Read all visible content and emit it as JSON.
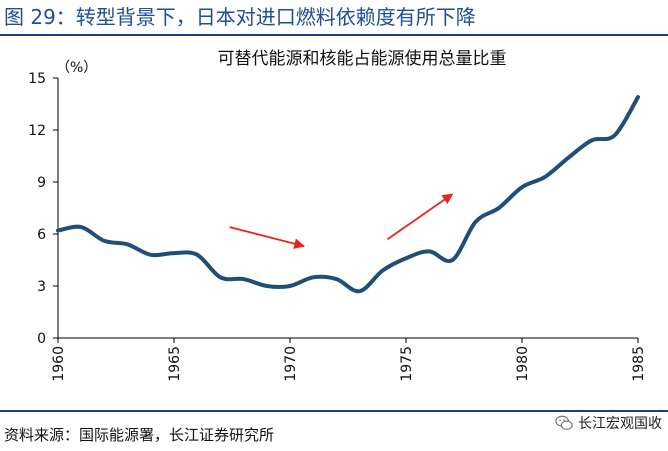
{
  "figure": {
    "title": "图 29：转型背景下，日本对进口燃料依赖度有所下降",
    "source": "资料来源：国际能源署，长江证券研究所",
    "brand": "长江宏观国收",
    "brand_icon": "wechat-icon"
  },
  "colors": {
    "title": "#1f4e9a",
    "rule": "#1f3f7a",
    "line": "#1f4e79",
    "arrow": "#e8261e",
    "axis": "#000000"
  },
  "chart_data": {
    "type": "line",
    "title": "可替代能源和核能占能源使用总量比重",
    "ylabel": "（%）",
    "xlabel": "",
    "ylim": [
      0,
      15
    ],
    "xlim": [
      1960,
      1985
    ],
    "yticks": [
      0,
      3,
      6,
      9,
      12,
      15
    ],
    "xticks": [
      1960,
      1965,
      1970,
      1975,
      1980,
      1985
    ],
    "grid": false,
    "series": [
      {
        "x": [
          1960,
          1961,
          1962,
          1963,
          1964,
          1965,
          1966,
          1967,
          1968,
          1969,
          1970,
          1971,
          1972,
          1973,
          1974,
          1975,
          1976,
          1977,
          1978,
          1979,
          1980,
          1981,
          1982,
          1983,
          1984,
          1985
        ],
        "values": [
          6.2,
          6.4,
          5.6,
          5.4,
          4.8,
          4.9,
          4.8,
          3.5,
          3.4,
          3.0,
          3.0,
          3.5,
          3.4,
          2.7,
          3.9,
          4.6,
          5.0,
          4.5,
          6.7,
          7.5,
          8.7,
          9.3,
          10.4,
          11.4,
          11.7,
          13.9
        ]
      }
    ],
    "annotations": [
      {
        "type": "arrow",
        "from": [
          1967.4,
          6.4
        ],
        "to": [
          1970.6,
          5.3
        ]
      },
      {
        "type": "arrow",
        "from": [
          1974.2,
          5.7
        ],
        "to": [
          1977.0,
          8.3
        ]
      }
    ]
  }
}
